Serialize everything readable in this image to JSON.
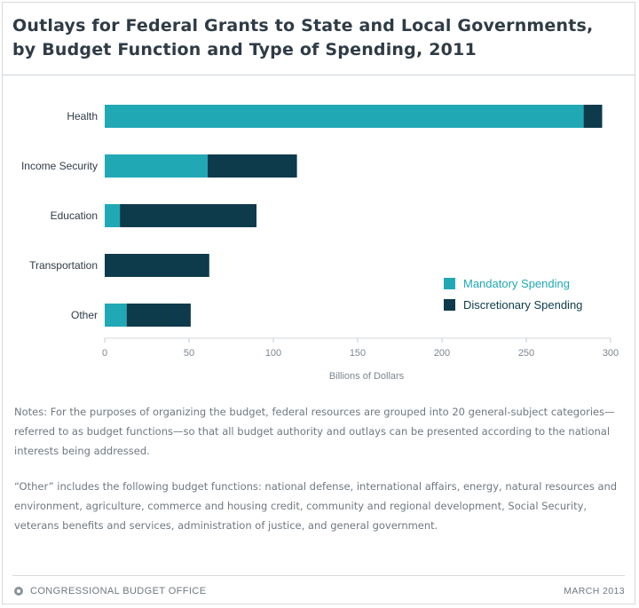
{
  "title_lines": [
    "Outlays for Federal Grants to State and Local Governments,",
    "by Budget Function and Type of Spending, 2011"
  ],
  "chart_data": {
    "type": "bar",
    "orientation": "horizontal",
    "stacked": true,
    "categories": [
      "Health",
      "Income Security",
      "Education",
      "Transportation",
      "Other"
    ],
    "series": [
      {
        "name": "Mandatory Spending",
        "values": [
          284,
          61,
          9,
          0,
          13
        ],
        "color": "#20a8b5"
      },
      {
        "name": "Discretionary Spending",
        "values": [
          11,
          53,
          81,
          62,
          38
        ],
        "color": "#0e3b4b"
      }
    ],
    "xlabel": "Billions of Dollars",
    "xlim": [
      0,
      300
    ],
    "xticks": [
      0,
      50,
      100,
      150,
      200,
      250,
      300
    ],
    "legend_position": "bottom-right",
    "grid": false
  },
  "notes": [
    "Notes: For the purposes of organizing the budget, federal resources are grouped into 20 general-subject categories—referred to as budget functions—so that all budget authority and outlays can be presented according to the national interests being addressed.",
    "“Other” includes the following budget functions: national defense, international affairs, energy, natural resources and environment, agriculture, commerce and housing credit, community and regional development, Social Security, veterans benefits and services, administration of justice, and general government."
  ],
  "footer": {
    "source": "CONGRESSIONAL BUDGET OFFICE",
    "date": "MARCH 2013",
    "icon": "cbo-logo-icon"
  }
}
